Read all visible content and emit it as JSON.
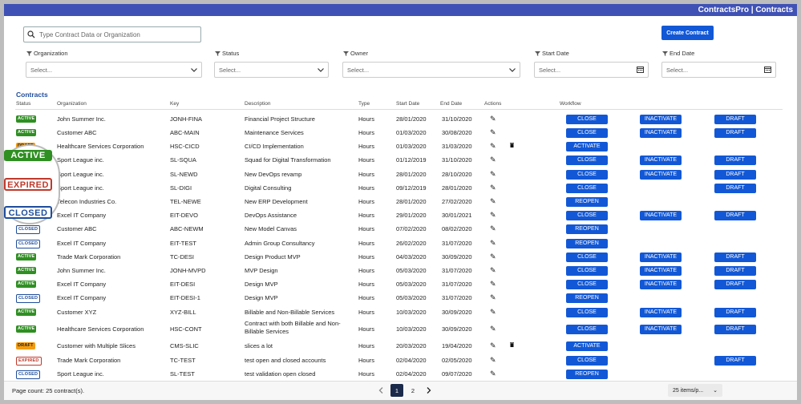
{
  "app_title": "ContractsPro | Contracts",
  "search": {
    "placeholder": "Type Contract Data or Organization"
  },
  "create_button": "Create Contract",
  "filters": [
    {
      "label": "Organization",
      "value": "Select..."
    },
    {
      "label": "Status",
      "value": "Select..."
    },
    {
      "label": "Owner",
      "value": "Select..."
    },
    {
      "label": "Start Date",
      "value": "Select..."
    },
    {
      "label": "End Date",
      "value": "Select..."
    }
  ],
  "section_title": "Contracts",
  "columns": {
    "status": "Status",
    "organization": "Organization",
    "key": "Key",
    "description": "Description",
    "type": "Type",
    "start": "Start Date",
    "end": "End Date",
    "actions": "Actions",
    "workflow": "Workflow"
  },
  "legend": {
    "active": "ACTIVE",
    "expired": "EXPIRED",
    "closed": "CLOSED"
  },
  "rows": [
    {
      "status": "ACTIVE",
      "org": "John Summer Inc.",
      "key": "JONH-FINA",
      "desc": "Financial Project Structure",
      "type": "Hours",
      "start": "28/01/2020",
      "end": "31/10/2020",
      "trash": false,
      "wf": [
        "CLOSE",
        "INACTIVATE",
        "DRAFT"
      ]
    },
    {
      "status": "ACTIVE",
      "org": "Customer ABC",
      "key": "ABC-MAIN",
      "desc": "Maintenance Services",
      "type": "Hours",
      "start": "01/03/2020",
      "end": "30/08/2020",
      "trash": false,
      "wf": [
        "CLOSE",
        "INACTIVATE",
        "DRAFT"
      ]
    },
    {
      "status": "DRAFT",
      "org": "Healthcare Services Corporation",
      "key": "HSC-CICD",
      "desc": "CI/CD Implementation",
      "type": "Hours",
      "start": "01/03/2020",
      "end": "31/03/2020",
      "trash": true,
      "wf": [
        "ACTIVATE"
      ]
    },
    {
      "status": "ACTIVE",
      "org": "Sport League inc.",
      "key": "SL-SQUA",
      "desc": "Squad for Digital Transformation",
      "type": "Hours",
      "start": "01/12/2019",
      "end": "31/10/2020",
      "trash": false,
      "wf": [
        "CLOSE",
        "INACTIVATE",
        "DRAFT"
      ]
    },
    {
      "status": "ACTIVE",
      "org": "Sport League inc.",
      "key": "SL-NEWD",
      "desc": "New DevOps revamp",
      "type": "Hours",
      "start": "28/01/2020",
      "end": "28/10/2020",
      "trash": false,
      "wf": [
        "CLOSE",
        "INACTIVATE",
        "DRAFT"
      ]
    },
    {
      "status": "EXPIRED",
      "org": "Sport League inc.",
      "key": "SL-DIGI",
      "desc": "Digital Consulting",
      "type": "Hours",
      "start": "09/12/2019",
      "end": "28/01/2020",
      "trash": false,
      "wf": [
        "CLOSE",
        "DRAFT"
      ]
    },
    {
      "status": "CLOSED",
      "org": "Telecon Industries Co.",
      "key": "TEL-NEWE",
      "desc": "New ERP Development",
      "type": "Hours",
      "start": "28/01/2020",
      "end": "27/02/2020",
      "trash": false,
      "wf": [
        "REOPEN"
      ]
    },
    {
      "status": "ACTIVE",
      "org": "Excel IT Company",
      "key": "EIT-DEVO",
      "desc": "DevOps Assistance",
      "type": "Hours",
      "start": "29/01/2020",
      "end": "30/01/2021",
      "trash": false,
      "wf": [
        "CLOSE",
        "INACTIVATE",
        "DRAFT"
      ]
    },
    {
      "status": "CLOSED",
      "org": "Customer ABC",
      "key": "ABC-NEWM",
      "desc": "New Model Canvas",
      "type": "Hours",
      "start": "07/02/2020",
      "end": "08/02/2020",
      "trash": false,
      "wf": [
        "REOPEN"
      ]
    },
    {
      "status": "CLOSED",
      "org": "Excel IT Company",
      "key": "EIT-TEST",
      "desc": "Admin Group Consultancy",
      "type": "Hours",
      "start": "26/02/2020",
      "end": "31/07/2020",
      "trash": false,
      "wf": [
        "REOPEN"
      ]
    },
    {
      "status": "ACTIVE",
      "org": "Trade Mark Corporation",
      "key": "TC-DESI",
      "desc": "Design Product MVP",
      "type": "Hours",
      "start": "04/03/2020",
      "end": "30/09/2020",
      "trash": false,
      "wf": [
        "CLOSE",
        "INACTIVATE",
        "DRAFT"
      ]
    },
    {
      "status": "ACTIVE",
      "org": "John Summer Inc.",
      "key": "JONH-MVPD",
      "desc": "MVP Design",
      "type": "Hours",
      "start": "05/03/2020",
      "end": "31/07/2020",
      "trash": false,
      "wf": [
        "CLOSE",
        "INACTIVATE",
        "DRAFT"
      ]
    },
    {
      "status": "ACTIVE",
      "org": "Excel IT Company",
      "key": "EIT-DESI",
      "desc": "Design MVP",
      "type": "Hours",
      "start": "05/03/2020",
      "end": "31/07/2020",
      "trash": false,
      "wf": [
        "CLOSE",
        "INACTIVATE",
        "DRAFT"
      ]
    },
    {
      "status": "CLOSED",
      "org": "Excel IT Company",
      "key": "EIT-DESI-1",
      "desc": "Design MVP",
      "type": "Hours",
      "start": "05/03/2020",
      "end": "31/07/2020",
      "trash": false,
      "wf": [
        "REOPEN"
      ]
    },
    {
      "status": "ACTIVE",
      "org": "Customer XYZ",
      "key": "XYZ-BILL",
      "desc": "Billable and Non-Billable Services",
      "type": "Hours",
      "start": "10/03/2020",
      "end": "30/09/2020",
      "trash": false,
      "wf": [
        "CLOSE",
        "INACTIVATE",
        "DRAFT"
      ]
    },
    {
      "status": "ACTIVE",
      "org": "Healthcare Services Corporation",
      "key": "HSC-CONT",
      "desc": "Contract with both Billable and Non-Billable Services",
      "type": "Hours",
      "start": "10/03/2020",
      "end": "30/09/2020",
      "trash": false,
      "wf": [
        "CLOSE",
        "INACTIVATE",
        "DRAFT"
      ]
    },
    {
      "status": "DRAFT",
      "org": "Customer with Multiple Slices",
      "key": "CMS-SLIC",
      "desc": "slices a lot",
      "type": "Hours",
      "start": "20/03/2020",
      "end": "19/04/2020",
      "trash": true,
      "wf": [
        "ACTIVATE"
      ]
    },
    {
      "status": "EXPIRED",
      "org": "Trade Mark Corporation",
      "key": "TC-TEST",
      "desc": "test open and closed accounts",
      "type": "Hours",
      "start": "02/04/2020",
      "end": "02/05/2020",
      "trash": false,
      "wf": [
        "CLOSE",
        "DRAFT"
      ]
    },
    {
      "status": "CLOSED",
      "org": "Sport League inc.",
      "key": "SL-TEST",
      "desc": "test validation open closed",
      "type": "Hours",
      "start": "02/04/2020",
      "end": "09/07/2020",
      "trash": false,
      "wf": [
        "REOPEN"
      ]
    }
  ],
  "footer": {
    "page_count": "Page count: 25 contract(s).",
    "pages": [
      "1",
      "2"
    ],
    "current_page": "1",
    "per_page": "25 items/p..."
  },
  "colors": {
    "topbar": "#3f51b5",
    "primary_button": "#1258d6",
    "active": "#2f8f22",
    "draft": "#f39c12",
    "closed": "#1f4d9c",
    "expired": "#c0392b"
  }
}
